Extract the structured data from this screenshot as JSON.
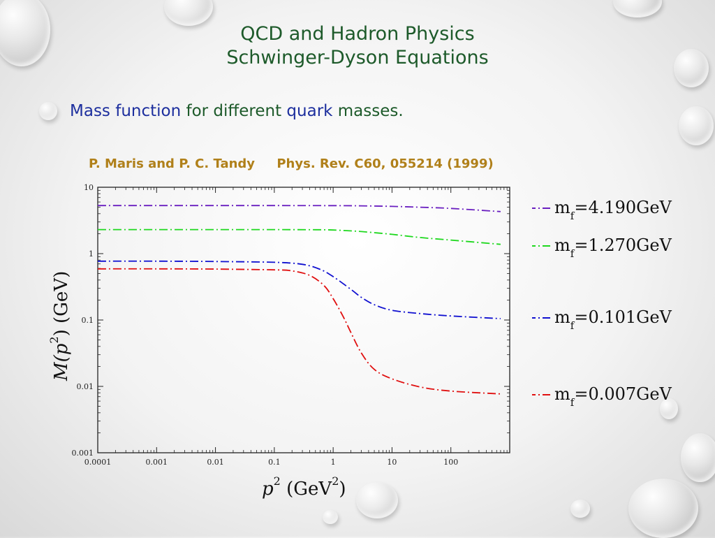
{
  "slide": {
    "title_line1": "QCD and Hadron Physics",
    "title_line2": "Schwinger-Dyson Equations",
    "subtitle_part1": "Mass function",
    "subtitle_part2": " for different ",
    "subtitle_part3": "quark",
    "subtitle_part4": " masses.",
    "citation": "P. Maris and P. C. Tandy     Phys. Rev. C60, 055214 (1999)",
    "colors": {
      "title": "#1d5a2a",
      "highlight": "#1d2f9e",
      "citation": "#b0801a"
    }
  },
  "chart_data": {
    "type": "line",
    "xscale": "log",
    "yscale": "log",
    "xlim": [
      0.0001,
      1000
    ],
    "ylim": [
      0.001,
      10
    ],
    "xticks": [
      "0.0001",
      "0.001",
      "0.01",
      "0.1",
      "1",
      "10",
      "100"
    ],
    "yticks": [
      "0.001",
      "0.01",
      "0.1",
      "1",
      "10"
    ],
    "xlabel_base": "p",
    "xlabel_sup": "2",
    "xlabel_unit": " (GeV",
    "xlabel_unit_sup": "2",
    "xlabel_close": ")",
    "ylabel_func": "M(p",
    "ylabel_sup": "2",
    "ylabel_rest": ") (GeV)",
    "legend_placement": "right, outside",
    "series": [
      {
        "prefix": "m",
        "sub": "f",
        "value": "=4.190GeV",
        "color": "#6a1fc0",
        "x": [
          0.0001,
          0.001,
          0.01,
          0.1,
          1,
          3,
          10,
          30,
          100,
          700
        ],
        "y": [
          5.3,
          5.3,
          5.3,
          5.3,
          5.28,
          5.25,
          5.15,
          5.0,
          4.8,
          4.3
        ]
      },
      {
        "prefix": "m",
        "sub": "f",
        "value": "=1.270GeV",
        "color": "#1ed81e",
        "x": [
          0.0001,
          0.001,
          0.01,
          0.1,
          0.5,
          1,
          3,
          10,
          30,
          100,
          700
        ],
        "y": [
          2.3,
          2.3,
          2.3,
          2.3,
          2.29,
          2.27,
          2.15,
          1.95,
          1.75,
          1.6,
          1.38
        ]
      },
      {
        "prefix": "m",
        "sub": "f",
        "value": "=0.101GeV",
        "color": "#1010d0",
        "x": [
          0.0001,
          0.001,
          0.01,
          0.1,
          0.3,
          0.6,
          1,
          2,
          3,
          5,
          10,
          30,
          100,
          700
        ],
        "y": [
          0.77,
          0.77,
          0.76,
          0.74,
          0.69,
          0.58,
          0.45,
          0.29,
          0.22,
          0.17,
          0.14,
          0.125,
          0.115,
          0.105
        ]
      },
      {
        "prefix": "m",
        "sub": "f",
        "value": "=0.007GeV",
        "color": "#e01010",
        "x": [
          0.0001,
          0.001,
          0.01,
          0.1,
          0.2,
          0.4,
          0.7,
          1,
          1.5,
          2,
          3,
          5,
          10,
          30,
          100,
          700
        ],
        "y": [
          0.59,
          0.59,
          0.585,
          0.57,
          0.55,
          0.47,
          0.33,
          0.21,
          0.11,
          0.065,
          0.032,
          0.018,
          0.013,
          0.0098,
          0.0085,
          0.0077
        ]
      }
    ]
  }
}
